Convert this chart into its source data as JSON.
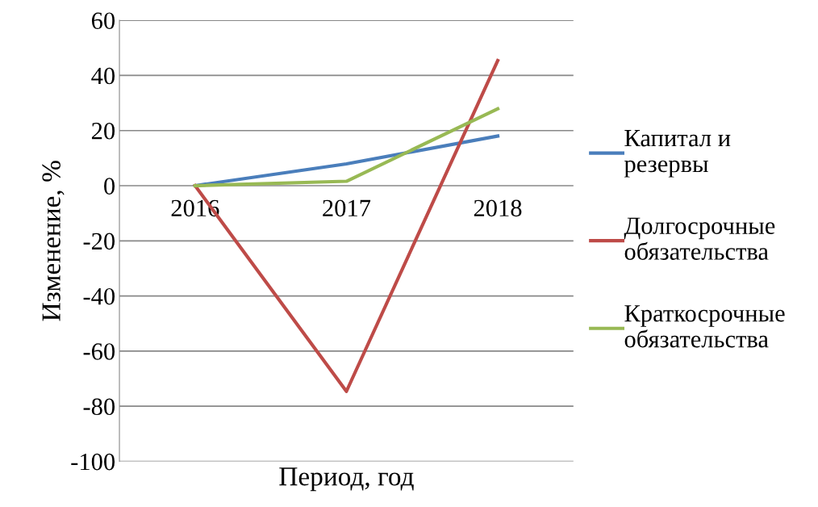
{
  "chart_data": {
    "type": "line",
    "xlabel": "Период, год",
    "ylabel": "Изменение, %",
    "categories": [
      "2016",
      "2017",
      "2018"
    ],
    "series": [
      {
        "name": "Капитал и резервы",
        "color": "#4a7ebb",
        "values": [
          0,
          7.9,
          18.0
        ]
      },
      {
        "name": "Долгосрочные обязательства",
        "color": "#be4b48",
        "values": [
          0,
          -74.6,
          45.4
        ]
      },
      {
        "name": "Краткосрочные обязательства",
        "color": "#98b954",
        "values": [
          0,
          1.6,
          27.9
        ]
      }
    ],
    "ylim": [
      -100,
      60
    ],
    "yticks": [
      -100,
      -80,
      -60,
      -40,
      -20,
      0,
      20,
      40,
      60
    ],
    "grid": "y",
    "legend": "right",
    "marker": "none",
    "line_style": "solid"
  }
}
